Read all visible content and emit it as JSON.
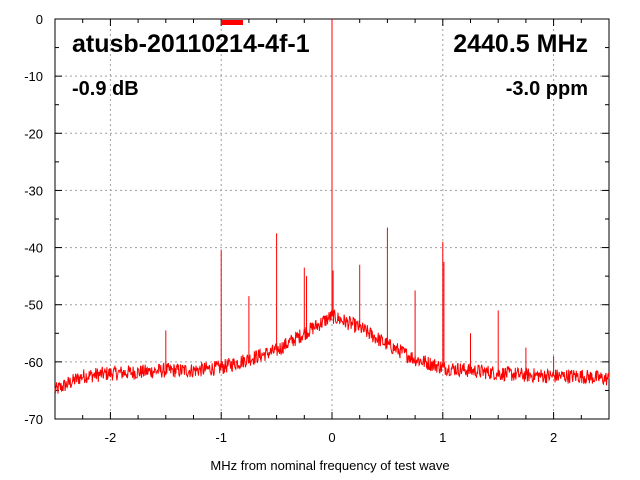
{
  "chart_data": {
    "type": "line",
    "title": "atusb-20110214-4f-1",
    "frequency": "2440.5 MHz",
    "gain": "-0.9 dB",
    "offset": "-3.0 ppm",
    "xlabel": "MHz from nominal frequency of test wave",
    "ylabel": "",
    "xlim": [
      -2.5,
      2.5
    ],
    "ylim": [
      -70,
      0
    ],
    "xticks": [
      -2,
      -1,
      0,
      1,
      2
    ],
    "yticks": [
      0,
      -10,
      -20,
      -30,
      -40,
      -50,
      -60,
      -70
    ],
    "grid": true,
    "legend": "top-center",
    "color": "#ff0000",
    "noise_floor": {
      "x": [
        -2.5,
        -2.25,
        -2.0,
        -1.75,
        -1.5,
        -1.25,
        -1.0,
        -0.75,
        -0.5,
        -0.25,
        0.0,
        0.25,
        0.5,
        0.75,
        1.0,
        1.25,
        1.5,
        1.75,
        2.0,
        2.25,
        2.5
      ],
      "y": [
        -65,
        -62.5,
        -62,
        -61.8,
        -61.5,
        -61.5,
        -61,
        -59.5,
        -58,
        -55,
        -52,
        -54,
        -57,
        -59.5,
        -61,
        -61.5,
        -62,
        -62.3,
        -62.5,
        -62.5,
        -63
      ]
    },
    "spurs": {
      "x": [
        -1.5,
        -1.0,
        -0.75,
        -0.5,
        -0.25,
        -0.23,
        0.0,
        0.01,
        0.25,
        0.5,
        0.75,
        1.0,
        1.01,
        1.25,
        1.5,
        1.75,
        2.0
      ],
      "y": [
        -54.5,
        -40.5,
        -48.5,
        -37.5,
        -43.5,
        -45,
        0,
        -44,
        -43,
        -36.5,
        -47.5,
        -39,
        -42.5,
        -55,
        -51,
        -57.5,
        -59
      ]
    }
  }
}
